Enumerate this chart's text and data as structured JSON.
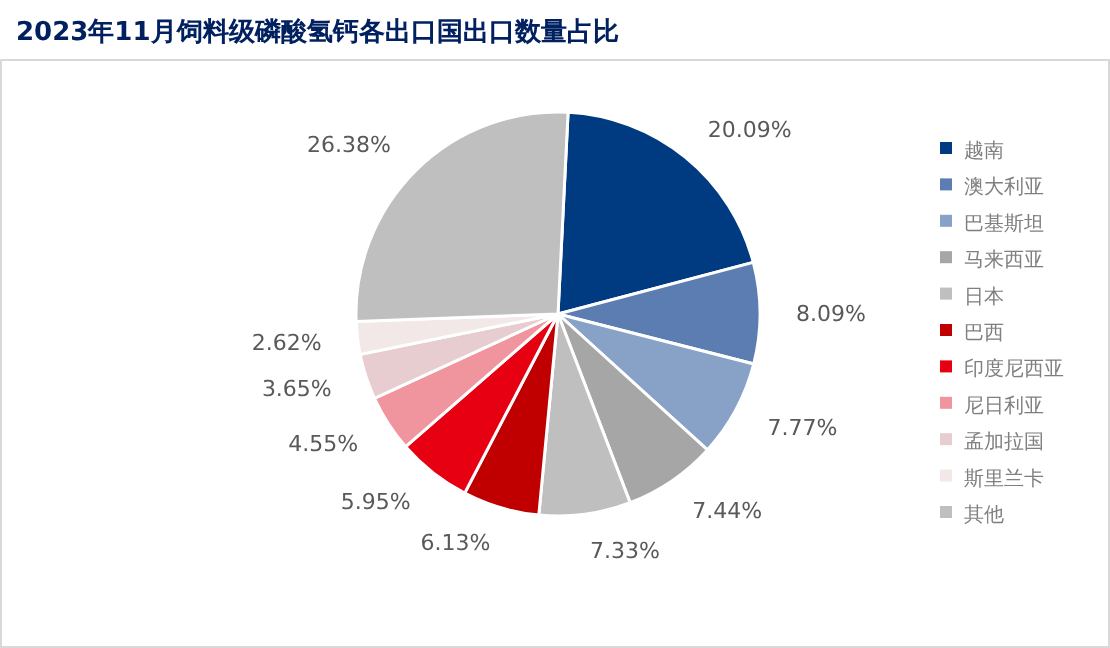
{
  "chart_data": {
    "type": "pie",
    "title": "2023年11月饲料级磷酸氢钙各出口国出口数量占比",
    "categories": [
      "越南",
      "澳大利亚",
      "巴基斯坦",
      "马来西亚",
      "日本",
      "巴西",
      "印度尼西亚",
      "尼日利亚",
      "孟加拉国",
      "斯里兰卡",
      "其他"
    ],
    "values": [
      20.09,
      8.09,
      7.77,
      7.44,
      7.33,
      6.13,
      5.95,
      4.55,
      3.65,
      2.62,
      26.38
    ],
    "value_labels": [
      "20.09%",
      "8.09%",
      "7.77%",
      "7.44%",
      "7.33%",
      "6.13%",
      "5.95%",
      "4.55%",
      "3.65%",
      "2.62%",
      "26.38%"
    ],
    "colors": [
      "#003a80",
      "#5b7db1",
      "#87a1c7",
      "#a6a6a6",
      "#bfbfbf",
      "#c00000",
      "#e60012",
      "#f0949e",
      "#e8cdd0",
      "#f2e8e8",
      "#bfbfbf"
    ],
    "legend": "right"
  }
}
